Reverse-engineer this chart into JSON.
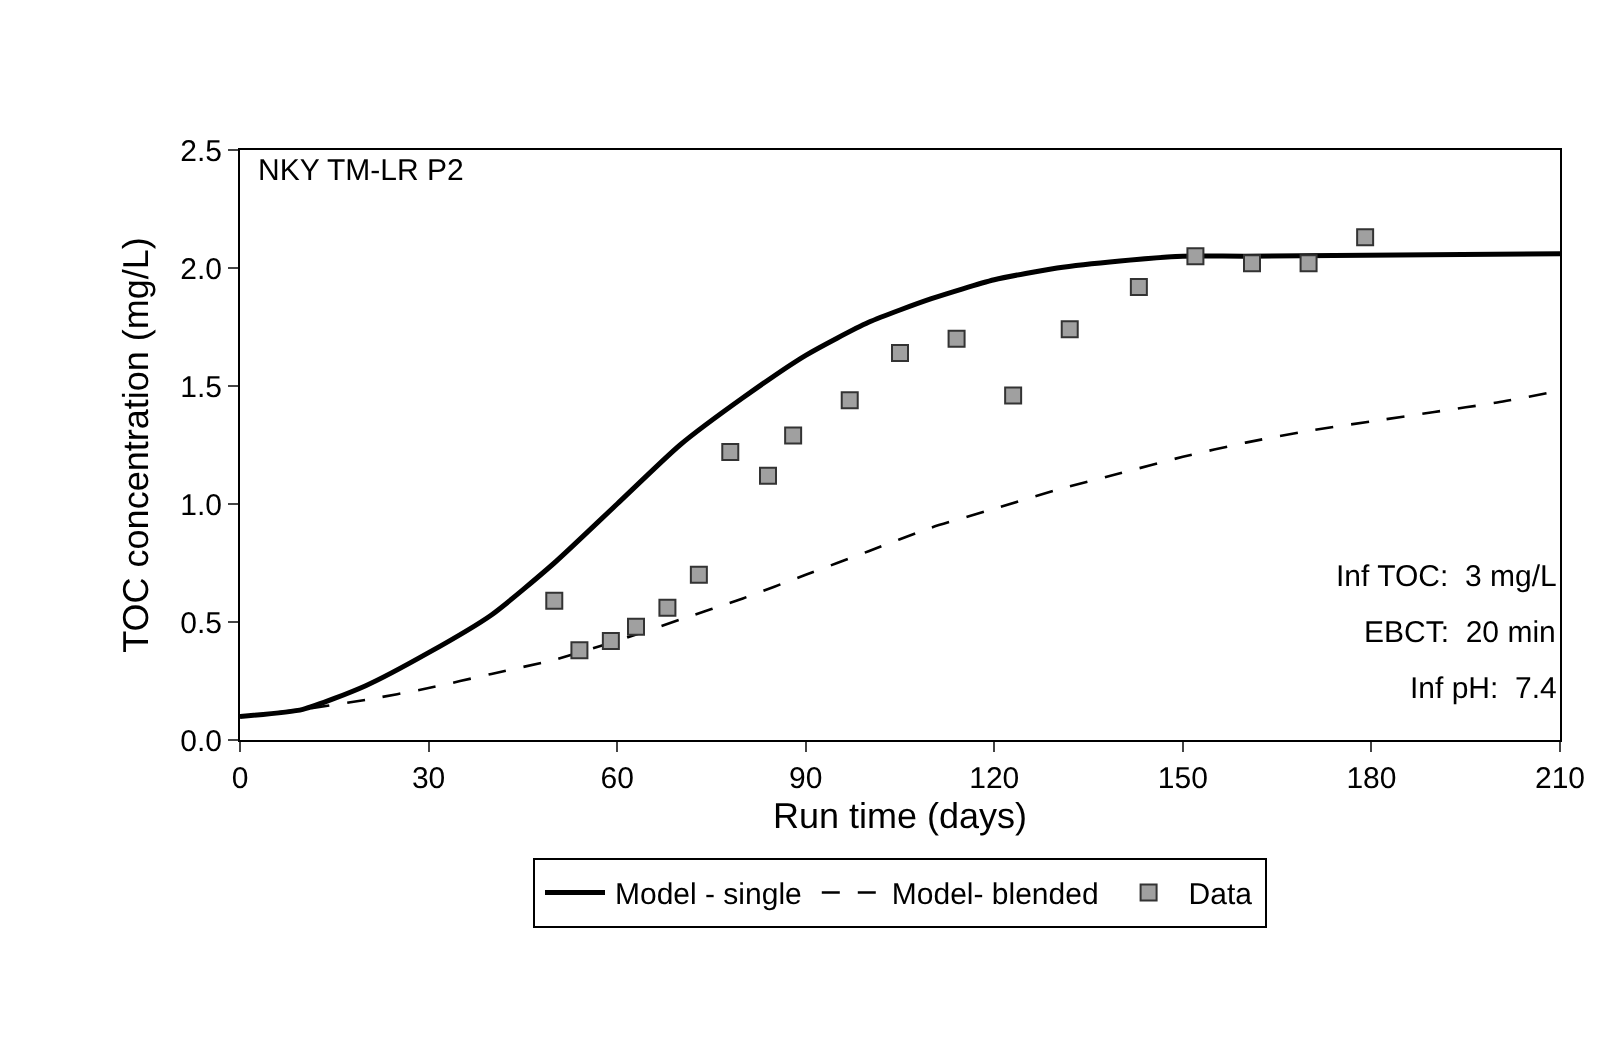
{
  "chart_data": {
    "type": "line",
    "title": "NKY TM-LR P2",
    "xlabel": "Run time (days)",
    "ylabel": "TOC concentration (mg/L)",
    "xlim": [
      0,
      210
    ],
    "xticks": [
      0,
      30,
      60,
      90,
      120,
      150,
      180,
      210
    ],
    "ylim": [
      0,
      2.5
    ],
    "yticks": [
      {
        "value": 0,
        "label": "0.0"
      },
      {
        "value": 0.5,
        "label": "0.5"
      },
      {
        "value": 1,
        "label": "1.0"
      },
      {
        "value": 1.5,
        "label": "1.5"
      },
      {
        "value": 2,
        "label": "2.0"
      },
      {
        "value": 2.5,
        "label": "2.5"
      }
    ],
    "grid": false,
    "legend": "bottom",
    "annotations": [
      "Inf TOC:  3 mg/L",
      "EBCT:  20 min",
      "Inf pH:  7.4"
    ],
    "series": [
      {
        "name": "Model - single",
        "color": "#000000",
        "line_style": "solid",
        "marker": "none",
        "x": [
          0,
          10,
          20,
          30,
          40,
          50,
          60,
          70,
          80,
          90,
          100,
          110,
          120,
          130,
          140,
          150,
          160,
          210
        ],
        "values": [
          0.1,
          0.13,
          0.23,
          0.37,
          0.53,
          0.75,
          1.0,
          1.25,
          1.45,
          1.63,
          1.77,
          1.87,
          1.95,
          2.0,
          2.03,
          2.05,
          2.05,
          2.06
        ]
      },
      {
        "name": "Model- blended",
        "color": "#000000",
        "line_style": "dashed",
        "marker": "none",
        "x": [
          0,
          10,
          20,
          30,
          40,
          50,
          60,
          70,
          80,
          90,
          100,
          110,
          120,
          130,
          140,
          150,
          160,
          170,
          180,
          190,
          200,
          210
        ],
        "values": [
          0.1,
          0.13,
          0.17,
          0.22,
          0.28,
          0.34,
          0.42,
          0.51,
          0.6,
          0.7,
          0.8,
          0.9,
          0.98,
          1.06,
          1.13,
          1.2,
          1.26,
          1.31,
          1.35,
          1.39,
          1.43,
          1.48
        ]
      },
      {
        "name": "Data",
        "type": "scatter",
        "color": "#a0a0a0",
        "marker": "square",
        "x": [
          50,
          54,
          59,
          63,
          68,
          73,
          78,
          84,
          88,
          97,
          105,
          114,
          123,
          132,
          143,
          152,
          161,
          170,
          179
        ],
        "values": [
          0.59,
          0.38,
          0.42,
          0.48,
          0.56,
          0.7,
          1.22,
          1.12,
          1.29,
          1.44,
          1.64,
          1.7,
          1.46,
          1.74,
          1.92,
          2.05,
          2.02,
          2.02,
          2.13
        ]
      }
    ]
  }
}
